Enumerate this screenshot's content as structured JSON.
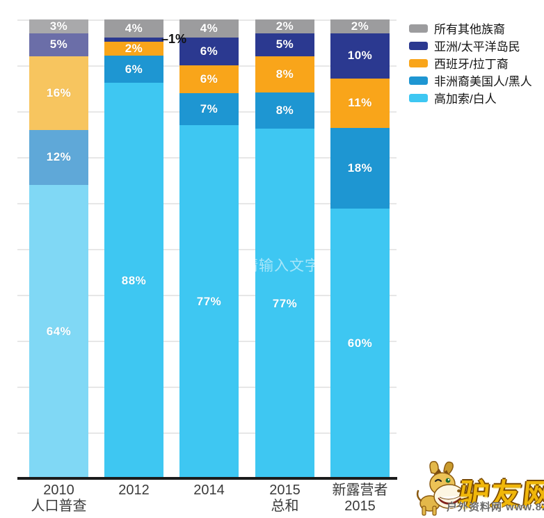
{
  "watermarks": {
    "center_text": "请输入文字",
    "site_name": "驴友网",
    "site_subtext": "户外资料网 www.8264.c"
  },
  "chart_data": {
    "type": "bar",
    "stacked": true,
    "orientation": "vertical",
    "ylim": [
      0,
      100
    ],
    "grid": true,
    "grid_interval_pct": 10,
    "legend_position": "top-right",
    "value_suffix": "%",
    "categories": [
      {
        "lines": [
          "2010",
          "人口普查"
        ]
      },
      {
        "lines": [
          "2012"
        ]
      },
      {
        "lines": [
          "2014"
        ]
      },
      {
        "lines": [
          "2015",
          "总和"
        ]
      },
      {
        "lines": [
          "新露营者",
          "2015"
        ]
      }
    ],
    "series": [
      {
        "name": "所有其他族裔",
        "color": "#9c9c9e",
        "colors_by_bar": [
          "#a9a9ab",
          "#9c9c9e",
          "#9c9c9e",
          "#9c9c9e",
          "#9c9c9e"
        ],
        "values": [
          3,
          4,
          4,
          2,
          2
        ]
      },
      {
        "name": "亚洲/太平洋岛民",
        "color": "#2b3990",
        "colors_by_bar": [
          "#6b6ea8",
          "#2b3990",
          "#2b3990",
          "#2b3990",
          "#2b3990"
        ],
        "values": [
          5,
          1,
          6,
          5,
          10
        ]
      },
      {
        "name": "西班牙/拉丁裔",
        "color": "#f9a51a",
        "colors_by_bar": [
          "#f7c55f",
          "#f9a51a",
          "#f9a51a",
          "#f9a51a",
          "#f9a51a"
        ],
        "values": [
          16,
          2,
          6,
          8,
          11
        ]
      },
      {
        "name": "非洲裔美国人/黑人",
        "color": "#1e96d2",
        "colors_by_bar": [
          "#5fa8d8",
          "#1e96d2",
          "#1e96d2",
          "#1e96d2",
          "#1e96d2"
        ],
        "values": [
          12,
          6,
          7,
          8,
          18
        ]
      },
      {
        "name": "高加索/白人",
        "color": "#3ec7f2",
        "colors_by_bar": [
          "#80d8f5",
          "#3ec7f2",
          "#3ec7f2",
          "#3ec7f2",
          "#3ec7f2"
        ],
        "values": [
          64,
          88,
          77,
          77,
          60
        ]
      }
    ],
    "outside_label": {
      "bar_index": 1,
      "series_index": 1,
      "text": "–1%"
    }
  }
}
